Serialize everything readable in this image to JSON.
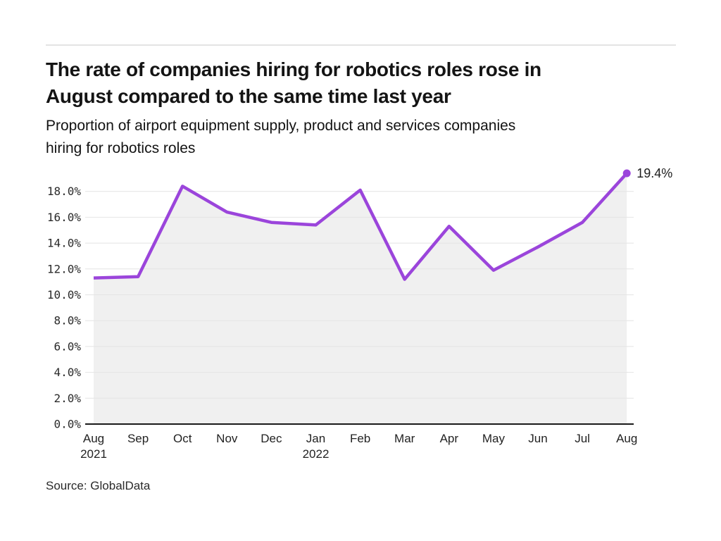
{
  "page": {
    "title_line1": "The rate of companies hiring for robotics roles rose in",
    "title_line2": "August compared to the same time last year",
    "subtitle_line1": "Proportion of airport equipment supply, product and services companies",
    "subtitle_line2": "hiring for robotics roles",
    "source": "Source: GlobalData"
  },
  "chart_data": {
    "type": "line",
    "title": "The rate of companies hiring for robotics roles rose in August compared to the same time last year",
    "subtitle": "Proportion of airport equipment supply, product and services companies hiring for robotics roles",
    "source": "Source: GlobalData",
    "categories": [
      {
        "month": "Aug",
        "year": "2021"
      },
      {
        "month": "Sep"
      },
      {
        "month": "Oct"
      },
      {
        "month": "Nov"
      },
      {
        "month": "Dec"
      },
      {
        "month": "Jan",
        "year": "2022"
      },
      {
        "month": "Feb"
      },
      {
        "month": "Mar"
      },
      {
        "month": "Apr"
      },
      {
        "month": "May"
      },
      {
        "month": "Jun"
      },
      {
        "month": "Jul"
      },
      {
        "month": "Aug"
      }
    ],
    "values": [
      11.3,
      11.4,
      18.4,
      16.4,
      15.6,
      15.4,
      18.1,
      11.2,
      15.3,
      11.9,
      13.7,
      15.6,
      19.4
    ],
    "unit": "%",
    "xlabel": "",
    "ylabel": "",
    "ylim": [
      0,
      20
    ],
    "grid": "horizontal",
    "legend": "none",
    "end_annotation": "19.4%",
    "yticks": [
      {
        "value": 0,
        "label": "0.0%"
      },
      {
        "value": 2,
        "label": "2.0%"
      },
      {
        "value": 4,
        "label": "4.0%"
      },
      {
        "value": 6,
        "label": "6.0%"
      },
      {
        "value": 8,
        "label": "8.0%"
      },
      {
        "value": 10,
        "label": "10.0%"
      },
      {
        "value": 12,
        "label": "12.0%"
      },
      {
        "value": 14,
        "label": "14.0%"
      },
      {
        "value": 16,
        "label": "16.0%"
      },
      {
        "value": 18,
        "label": "18.0%"
      }
    ],
    "colors": {
      "line": "#9B45DB",
      "fill": "#F0F0F0",
      "grid": "#E4E4E4",
      "axis": "#1A1A1A",
      "text": "#222222"
    }
  }
}
